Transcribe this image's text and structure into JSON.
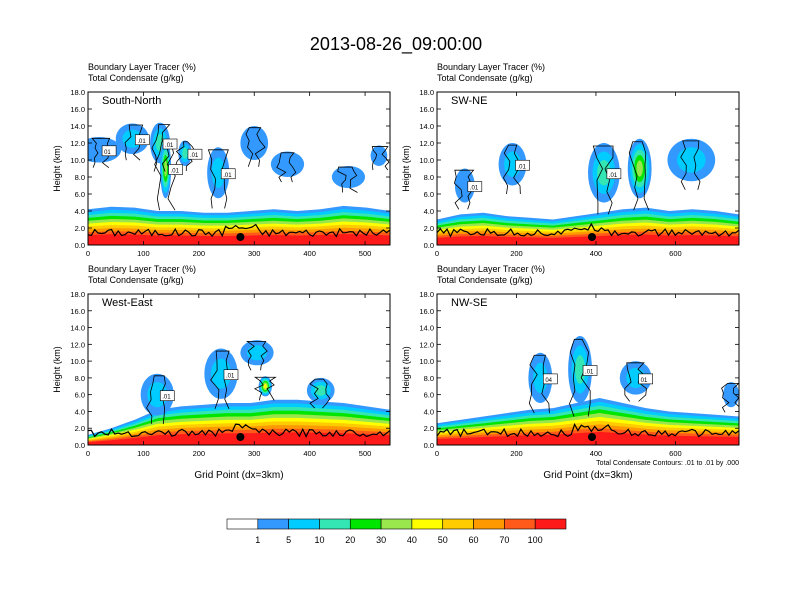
{
  "figure_title": "2013-08-26_09:00:00",
  "colors": {
    "fill_levels": [
      "#ffffff",
      "#3399ff",
      "#00ccff",
      "#33e6b3",
      "#00e600",
      "#99e64d",
      "#ffff00",
      "#ffcc00",
      "#ff9900",
      "#ff5a1a",
      "#ff1a1a"
    ],
    "contour": "#000000",
    "terrain": "#000000"
  },
  "colorbar": {
    "labels": [
      "1",
      "5",
      "10",
      "20",
      "30",
      "40",
      "50",
      "60",
      "70",
      "100"
    ]
  },
  "chart_data": [
    {
      "type": "heatmap",
      "panel": "South-North",
      "title_lines": [
        "Boundary Layer Tracer   (%)",
        "Total Condensate   (g/kg)"
      ],
      "ylabel": "Height (km)",
      "xlabel": "",
      "xlim": [
        0,
        545
      ],
      "ylim": [
        0,
        18
      ],
      "xticks": [
        0,
        100,
        200,
        300,
        400,
        500
      ],
      "yticks": [
        "0.0",
        "2.0",
        "4.0",
        "6.0",
        "8.0",
        "10.0",
        "12.0",
        "14.0",
        "16.0",
        "18.0"
      ],
      "marker_x": 275,
      "contour_labels": [
        "01",
        ".01",
        ".01",
        ".01",
        ".01",
        ".01"
      ],
      "bl_top_km": [
        4.2,
        4.5,
        4.4,
        4.0,
        4.0,
        3.8,
        3.8,
        4.0,
        4.2,
        4.0,
        4.2,
        4.6,
        4.4,
        4.0
      ],
      "clouds": [
        {
          "x": 20,
          "y": 11.2,
          "rx": 40,
          "ry": 1.5,
          "level": 1
        },
        {
          "x": 80,
          "y": 12.5,
          "rx": 30,
          "ry": 1.8,
          "level": 2
        },
        {
          "x": 130,
          "y": 12.0,
          "rx": 18,
          "ry": 2.4,
          "level": 3
        },
        {
          "x": 140,
          "y": 9.0,
          "rx": 10,
          "ry": 3.5,
          "level": 5
        },
        {
          "x": 175,
          "y": 10.8,
          "rx": 12,
          "ry": 1.5,
          "level": 3
        },
        {
          "x": 235,
          "y": 8.5,
          "rx": 20,
          "ry": 3.0,
          "level": 2
        },
        {
          "x": 300,
          "y": 12.0,
          "rx": 25,
          "ry": 2.0,
          "level": 1
        },
        {
          "x": 360,
          "y": 9.5,
          "rx": 30,
          "ry": 1.5,
          "level": 1
        },
        {
          "x": 470,
          "y": 8.0,
          "rx": 30,
          "ry": 1.3,
          "level": 1
        },
        {
          "x": 525,
          "y": 10.5,
          "rx": 15,
          "ry": 1.2,
          "level": 1
        }
      ]
    },
    {
      "type": "heatmap",
      "panel": "SW-NE",
      "title_lines": [
        "Boundary Layer Tracer   (%)",
        "Total Condensate   (g/kg)"
      ],
      "ylabel": "Height (km)",
      "xlabel": "",
      "xlim": [
        0,
        760
      ],
      "ylim": [
        0,
        18
      ],
      "xticks": [
        0,
        200,
        400,
        600
      ],
      "yticks": [
        "0.0",
        "2.0",
        "4.0",
        "6.0",
        "8.0",
        "10.0",
        "12.0",
        "14.0",
        "16.0",
        "18.0"
      ],
      "marker_x": 390,
      "contour_labels": [
        ".01",
        ".01",
        ".01"
      ],
      "bl_top_km": [
        3.0,
        3.6,
        3.8,
        3.4,
        3.2,
        3.0,
        3.4,
        3.8,
        4.2,
        4.4,
        4.0,
        4.2,
        4.0,
        3.6
      ],
      "clouds": [
        {
          "x": 70,
          "y": 7.0,
          "rx": 25,
          "ry": 2.0,
          "level": 1
        },
        {
          "x": 190,
          "y": 9.5,
          "rx": 35,
          "ry": 2.5,
          "level": 2
        },
        {
          "x": 420,
          "y": 8.5,
          "rx": 40,
          "ry": 3.5,
          "level": 3
        },
        {
          "x": 510,
          "y": 9.0,
          "rx": 30,
          "ry": 3.5,
          "level": 5
        },
        {
          "x": 640,
          "y": 10.0,
          "rx": 60,
          "ry": 2.5,
          "level": 2
        }
      ]
    },
    {
      "type": "heatmap",
      "panel": "West-East",
      "title_lines": [
        "Boundary Layer Tracer   (%)",
        "Total Condensate   (g/kg)"
      ],
      "ylabel": "Height (km)",
      "xlabel": "Grid Point (dx=3km)",
      "xlim": [
        0,
        545
      ],
      "ylim": [
        0,
        18
      ],
      "xticks": [
        0,
        100,
        200,
        300,
        400,
        500
      ],
      "yticks": [
        "0.0",
        "2.0",
        "4.0",
        "6.0",
        "8.0",
        "10.0",
        "12.0",
        "14.0",
        "16.0",
        "18.0"
      ],
      "marker_x": 275,
      "contour_labels": [
        ".01",
        ".01"
      ],
      "bl_top_km": [
        1.2,
        2.0,
        3.0,
        4.2,
        4.6,
        4.8,
        5.0,
        5.0,
        5.4,
        5.4,
        5.2,
        5.0,
        4.6,
        4.2
      ],
      "clouds": [
        {
          "x": 125,
          "y": 6.0,
          "rx": 30,
          "ry": 2.5,
          "level": 2
        },
        {
          "x": 240,
          "y": 8.5,
          "rx": 30,
          "ry": 3.0,
          "level": 2
        },
        {
          "x": 305,
          "y": 11.0,
          "rx": 30,
          "ry": 1.5,
          "level": 2
        },
        {
          "x": 320,
          "y": 7.0,
          "rx": 12,
          "ry": 1.2,
          "level": 6
        },
        {
          "x": 420,
          "y": 6.5,
          "rx": 25,
          "ry": 1.5,
          "level": 3
        }
      ]
    },
    {
      "type": "heatmap",
      "panel": "NW-SE",
      "title_lines": [
        "Boundary Layer Tracer   (%)",
        "Total Condensate   (g/kg)"
      ],
      "ylabel": "Height (km)",
      "xlabel": "Grid Point (dx=3km)",
      "xlim": [
        0,
        760
      ],
      "ylim": [
        0,
        18
      ],
      "xticks": [
        0,
        200,
        400,
        600
      ],
      "yticks": [
        "0.0",
        "2.0",
        "4.0",
        "6.0",
        "8.0",
        "10.0",
        "12.0",
        "14.0",
        "16.0",
        "18.0"
      ],
      "marker_x": 390,
      "contour_labels": [
        "04",
        ".01",
        "01"
      ],
      "footnote": "Total Condensate Contours: .01 to .01 by .000",
      "bl_top_km": [
        2.6,
        3.0,
        3.4,
        3.8,
        4.2,
        4.4,
        5.0,
        5.6,
        5.0,
        4.4,
        4.0,
        3.8,
        3.6,
        3.4
      ],
      "clouds": [
        {
          "x": 260,
          "y": 8.0,
          "rx": 30,
          "ry": 3.0,
          "level": 2
        },
        {
          "x": 360,
          "y": 9.0,
          "rx": 30,
          "ry": 4.0,
          "level": 3
        },
        {
          "x": 500,
          "y": 8.0,
          "rx": 40,
          "ry": 2.0,
          "level": 2
        },
        {
          "x": 740,
          "y": 6.0,
          "rx": 20,
          "ry": 1.5,
          "level": 1
        }
      ]
    }
  ]
}
